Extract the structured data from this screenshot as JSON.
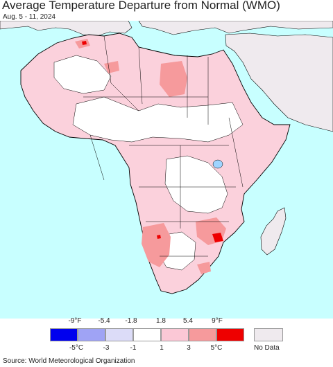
{
  "title": "Average Temperature Departure from Normal (WMO)",
  "subtitle": "Aug. 5 - 11, 2024",
  "source": "Source: World Meteorological Organization",
  "legend": {
    "fahrenheit_labels": [
      "-9°F",
      "-5.4",
      "-1.8",
      "1.8",
      "5.4",
      "9°F"
    ],
    "celsius_labels": [
      "-5°C",
      "-3",
      "-1",
      "1",
      "3",
      "5°C"
    ],
    "colors": [
      "#0000ee",
      "#9fa3f5",
      "#dcdcf8",
      "#ffffff",
      "#fbc8d6",
      "#f69a9c",
      "#ee0000"
    ],
    "no_data_label": "No Data",
    "no_data_color": "#efeaee"
  },
  "map": {
    "ocean_color": "#c8ffff",
    "land_color": "#fbd1dc",
    "no_data_land_color": "#efeaee",
    "border_color": "#000000"
  }
}
